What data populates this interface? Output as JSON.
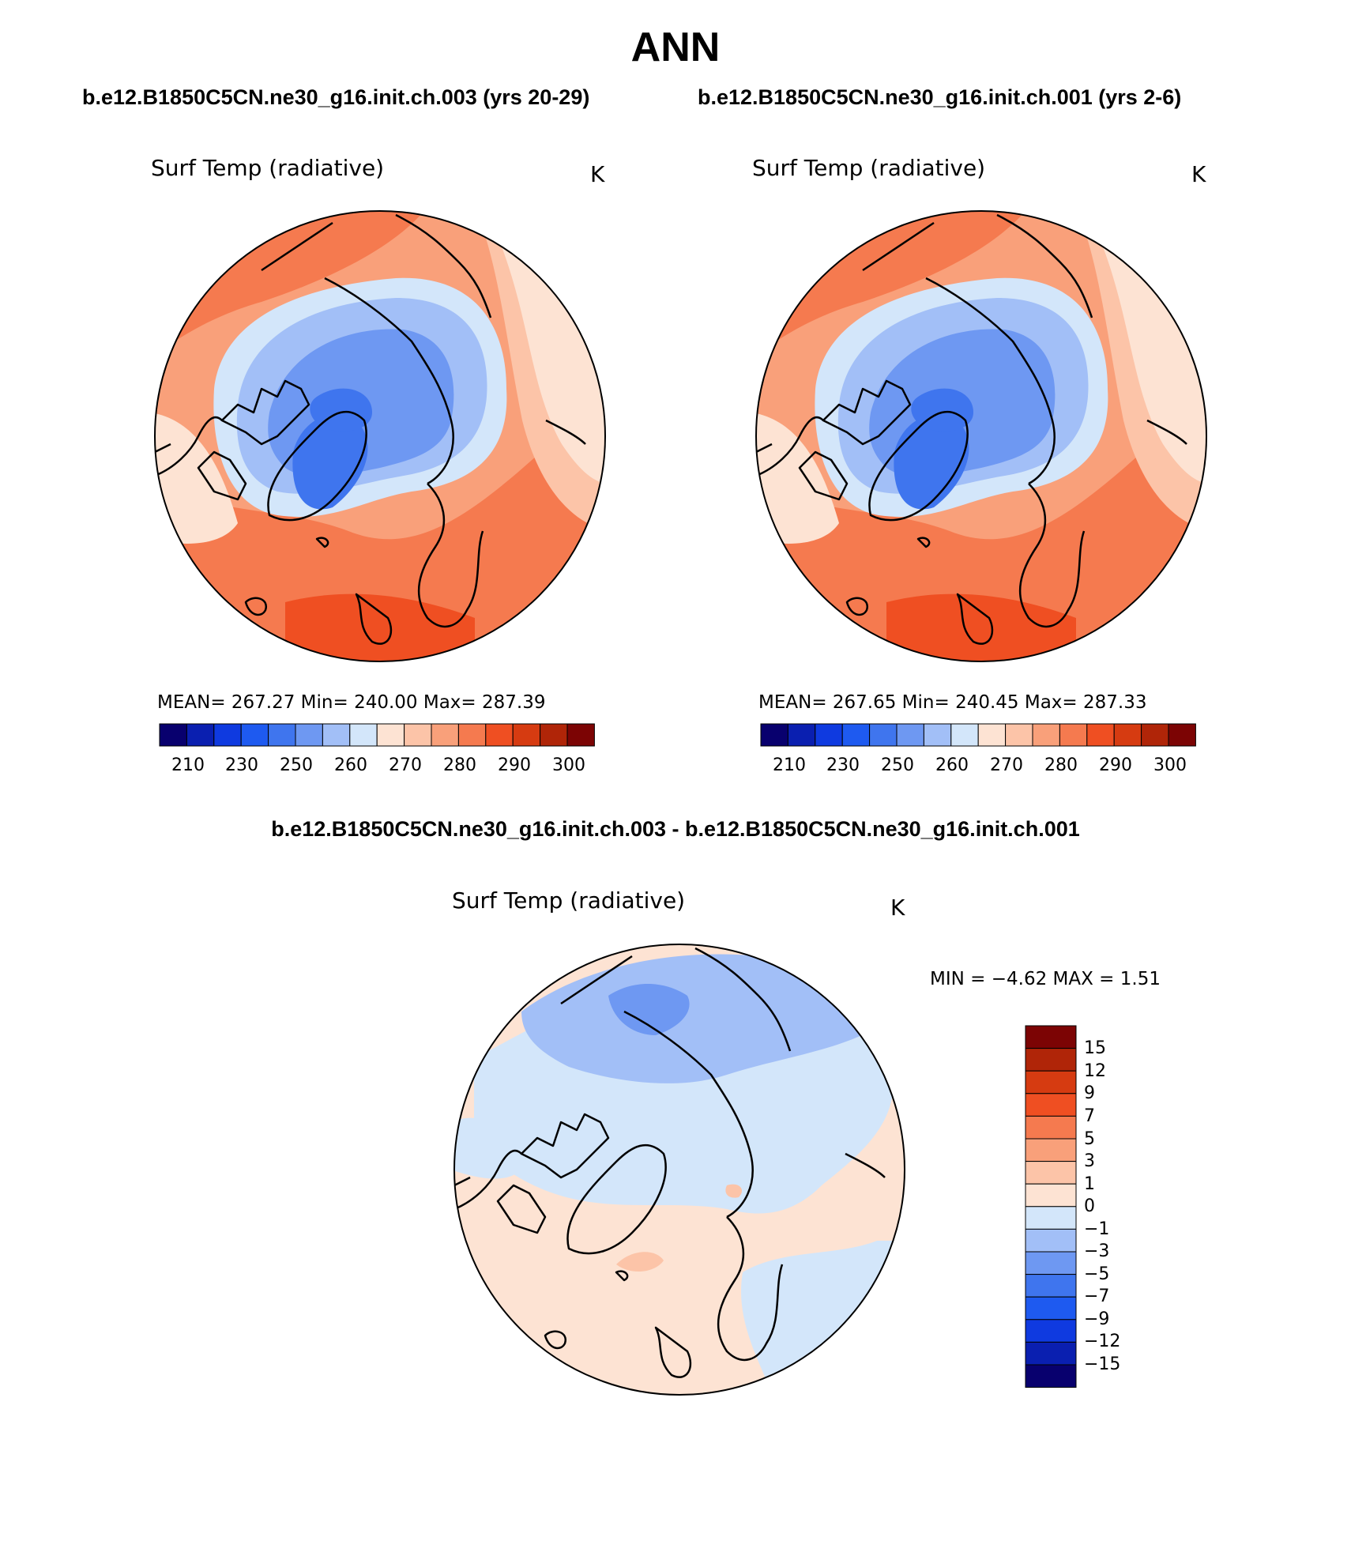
{
  "title": "ANN",
  "left_case_title": "b.e12.B1850C5CN.ne30_g16.init.ch.003 (yrs 20-29)",
  "right_case_title": "b.e12.B1850C5CN.ne30_g16.init.ch.001 (yrs 2-6)",
  "difference_title": "b.e12.B1850C5CN.ne30_g16.init.ch.003 - b.e12.B1850C5CN.ne30_g16.init.ch.001",
  "panels": [
    {
      "variable": "Surf Temp (radiative)",
      "units": "K",
      "stats": "MEAN= 267.27   Min= 240.00   Max= 287.39",
      "colorbar_ticks": [
        "210",
        "230",
        "250",
        "260",
        "270",
        "280",
        "290",
        "300"
      ]
    },
    {
      "variable": "Surf Temp (radiative)",
      "units": "K",
      "stats": "MEAN= 267.65   Min= 240.45   Max= 287.33",
      "colorbar_ticks": [
        "210",
        "230",
        "250",
        "260",
        "270",
        "280",
        "290",
        "300"
      ]
    },
    {
      "variable": "Surf Temp (radiative)",
      "units": "K",
      "stats": "MIN =   −4.62  MAX =    1.51",
      "colorbar_ticks": [
        "15",
        "12",
        "9",
        "7",
        "5",
        "3",
        "1",
        "0",
        "−1",
        "−3",
        "−5",
        "−7",
        "−9",
        "−12",
        "−15"
      ]
    }
  ],
  "colors": {
    "abs_scale": [
      "#08006e",
      "#0a1fb0",
      "#0f3ae0",
      "#1e5af0",
      "#3f75ee",
      "#6e98f2",
      "#a2bff7",
      "#d3e6fa",
      "#fde3d3",
      "#fcc4a8",
      "#f9a07a",
      "#f57a4f",
      "#ef4f22",
      "#d63b11",
      "#b02508",
      "#7c0404"
    ],
    "diff_scale": [
      "#7c0404",
      "#b02508",
      "#d63b11",
      "#ef4f22",
      "#f57a4f",
      "#f9a07a",
      "#fcc4a8",
      "#fde3d3",
      "#d3e6fa",
      "#a2bff7",
      "#6e98f2",
      "#3f75ee",
      "#1e5af0",
      "#0f3ae0",
      "#0a1fb0",
      "#08006e"
    ]
  }
}
